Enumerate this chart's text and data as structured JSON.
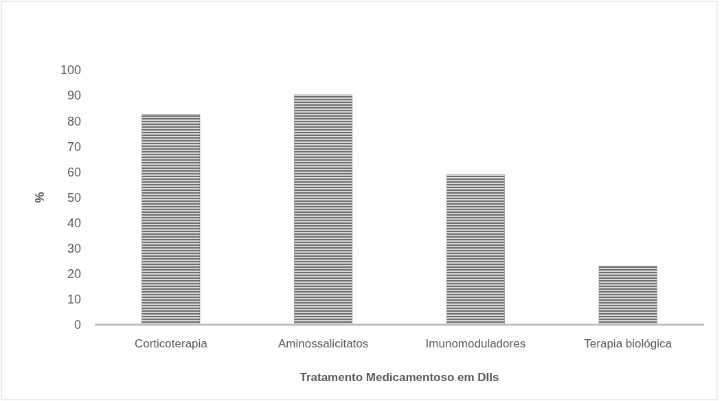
{
  "chart_data": {
    "type": "bar",
    "xlabel": "Tratamento Medicamentoso em DIIs",
    "ylabel": "%",
    "categories": [
      "Corticoterapia",
      "Aminossalicitatos",
      "Imunomoduladores",
      "Terapia biológica"
    ],
    "values": [
      82.6,
      90.3,
      59,
      23
    ],
    "color": "#6e6e6e",
    "ylim": [
      0,
      100
    ],
    "yticks": [
      0,
      10,
      20,
      30,
      40,
      50,
      60,
      70,
      80,
      90,
      100
    ],
    "grid": false
  }
}
